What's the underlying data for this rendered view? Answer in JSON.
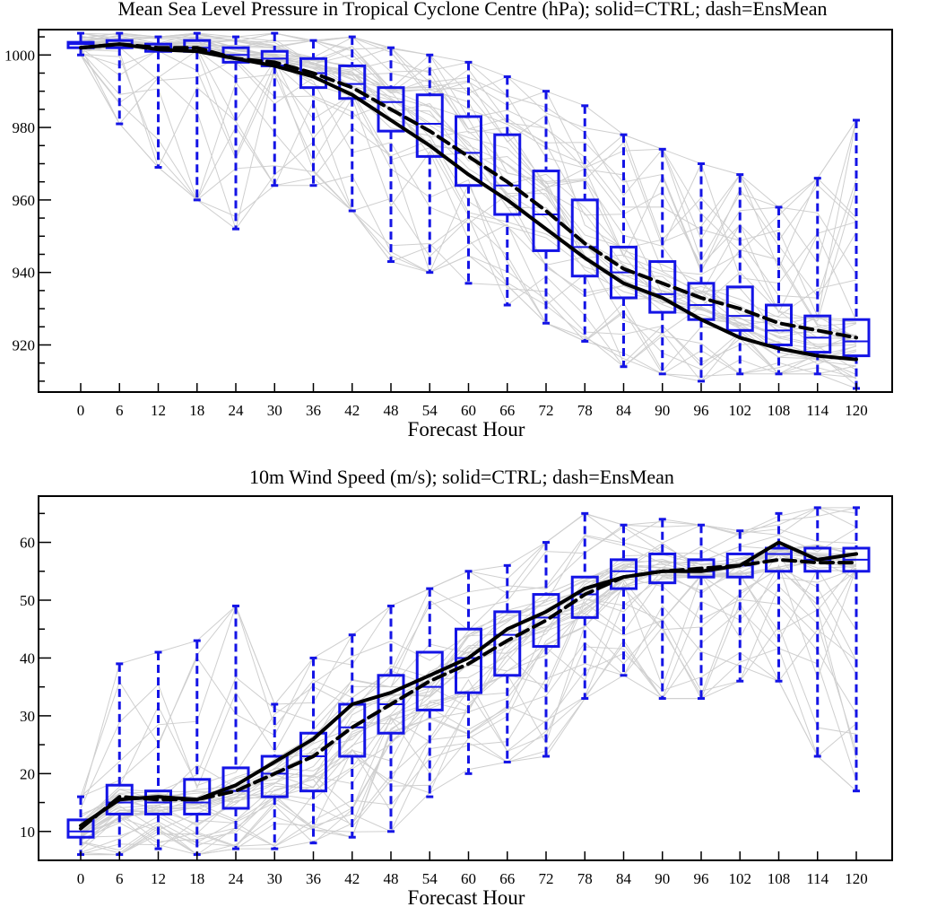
{
  "colors": {
    "box": "#1414e6",
    "ctrl": "#000000",
    "ensmean": "#000000",
    "members": "#cfcfcf"
  },
  "chart_data": [
    {
      "type": "box",
      "title": "Mean Sea Level Pressure in Tropical Cyclone Centre (hPa); solid=CTRL; dash=EnsMean",
      "xlabel": "Forecast Hour",
      "ylabel": "",
      "x": [
        0,
        6,
        12,
        18,
        24,
        30,
        36,
        42,
        48,
        54,
        60,
        66,
        72,
        78,
        84,
        90,
        96,
        102,
        108,
        114,
        120
      ],
      "ylim": [
        907,
        1007
      ],
      "yticks": [
        920,
        940,
        960,
        980,
        1000
      ],
      "grid": false,
      "boxes": {
        "min": [
          1000,
          981,
          969,
          960,
          952,
          964,
          964,
          957,
          943,
          940,
          937,
          931,
          926,
          921,
          914,
          912,
          910,
          912,
          912,
          912,
          908
        ],
        "q1": [
          1002,
          1002,
          1001,
          1001,
          998,
          997,
          991,
          988,
          979,
          972,
          964,
          956,
          946,
          939,
          933,
          929,
          927,
          924,
          920,
          918,
          917
        ],
        "median": [
          1003,
          1003,
          1002,
          1002,
          1000,
          999,
          995,
          992,
          987,
          981,
          973,
          964,
          956,
          947,
          940,
          934,
          931,
          928,
          924,
          922,
          921
        ],
        "q3": [
          1003.5,
          1004,
          1003,
          1004,
          1002,
          1001,
          999,
          997,
          991,
          989,
          983,
          978,
          968,
          960,
          947,
          943,
          937,
          936,
          931,
          928,
          927
        ],
        "max": [
          1006,
          1006,
          1005,
          1006,
          1005,
          1006,
          1004,
          1005,
          1002,
          1000,
          998,
          994,
          990,
          986,
          978,
          974,
          970,
          967,
          958,
          966,
          982
        ]
      },
      "series": [
        {
          "name": "CTRL",
          "values": [
            1002,
            1003,
            1001.5,
            1001,
            999,
            997,
            994,
            989,
            982,
            975,
            967,
            960,
            952,
            944,
            937,
            933,
            927,
            922,
            919,
            917,
            916
          ]
        },
        {
          "name": "EnsMean",
          "values": [
            1002,
            1003,
            1002,
            1002,
            999,
            998,
            995,
            991,
            985,
            979,
            972,
            965,
            957,
            948,
            941,
            937,
            933,
            930,
            926,
            924,
            922
          ]
        }
      ]
    },
    {
      "type": "box",
      "title": "10m Wind Speed (m/s); solid=CTRL; dash=EnsMean",
      "xlabel": "Forecast Hour",
      "ylabel": "",
      "x": [
        0,
        6,
        12,
        18,
        24,
        30,
        36,
        42,
        48,
        54,
        60,
        66,
        72,
        78,
        84,
        90,
        96,
        102,
        108,
        114,
        120
      ],
      "ylim": [
        5,
        68
      ],
      "yticks": [
        10,
        20,
        30,
        40,
        50,
        60
      ],
      "grid": false,
      "boxes": {
        "min": [
          6,
          6,
          7,
          6,
          7,
          7,
          8,
          9,
          10,
          16,
          20,
          22,
          23,
          33,
          37,
          33,
          33,
          36,
          36,
          23,
          17
        ],
        "q1": [
          9,
          13,
          13,
          13,
          14,
          16,
          17,
          23,
          27,
          31,
          34,
          37,
          42,
          47,
          52,
          53,
          54,
          54,
          55,
          55,
          55
        ],
        "median": [
          10,
          15,
          15,
          15,
          17,
          20,
          23,
          28,
          32,
          35,
          40,
          44,
          47,
          51,
          55,
          55,
          55,
          56,
          58,
          57,
          57
        ],
        "q3": [
          12,
          18,
          17,
          19,
          21,
          23,
          27,
          32,
          37,
          41,
          45,
          48,
          51,
          54,
          57,
          58,
          57,
          58,
          59,
          59,
          59
        ],
        "max": [
          16,
          39,
          41,
          43,
          49,
          32,
          40,
          44,
          49,
          52,
          55,
          56,
          60,
          65,
          63,
          64,
          63,
          62,
          65,
          66,
          66
        ]
      },
      "series": [
        {
          "name": "CTRL",
          "values": [
            11,
            15.5,
            16,
            15.5,
            18,
            22,
            26,
            32,
            34,
            37,
            40,
            45,
            48,
            52,
            54,
            55,
            55,
            56,
            60,
            57,
            58
          ]
        },
        {
          "name": "EnsMean",
          "values": [
            10.5,
            16,
            15.5,
            15.5,
            17,
            20,
            23,
            28,
            32,
            36,
            39,
            43,
            46.5,
            51,
            54,
            55,
            55.5,
            56,
            57,
            56.5,
            56.5
          ]
        }
      ]
    }
  ]
}
